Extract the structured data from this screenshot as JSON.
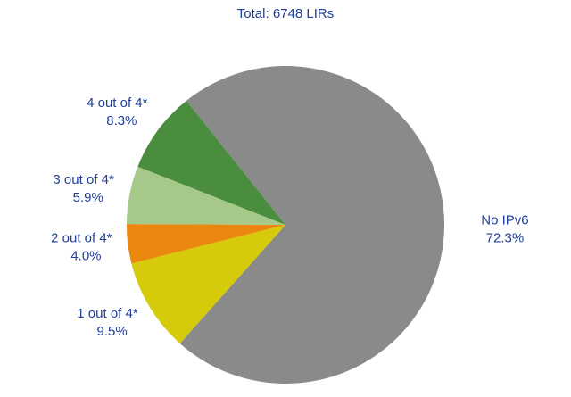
{
  "chart_data": {
    "type": "pie",
    "title": "Total: 6748 LIRs",
    "categories": [
      "No IPv6",
      "1 out of 4*",
      "2 out of 4*",
      "3 out of 4*",
      "4 out of 4*"
    ],
    "values": [
      72.3,
      9.5,
      4.0,
      5.9,
      8.3
    ],
    "value_labels": [
      "72.3%",
      "9.5%",
      "4.0%",
      "5.9%",
      "8.3%"
    ],
    "colors": [
      "#8a8a8a",
      "#d6cb0a",
      "#ea870f",
      "#a6c98a",
      "#4b8d3e"
    ]
  }
}
